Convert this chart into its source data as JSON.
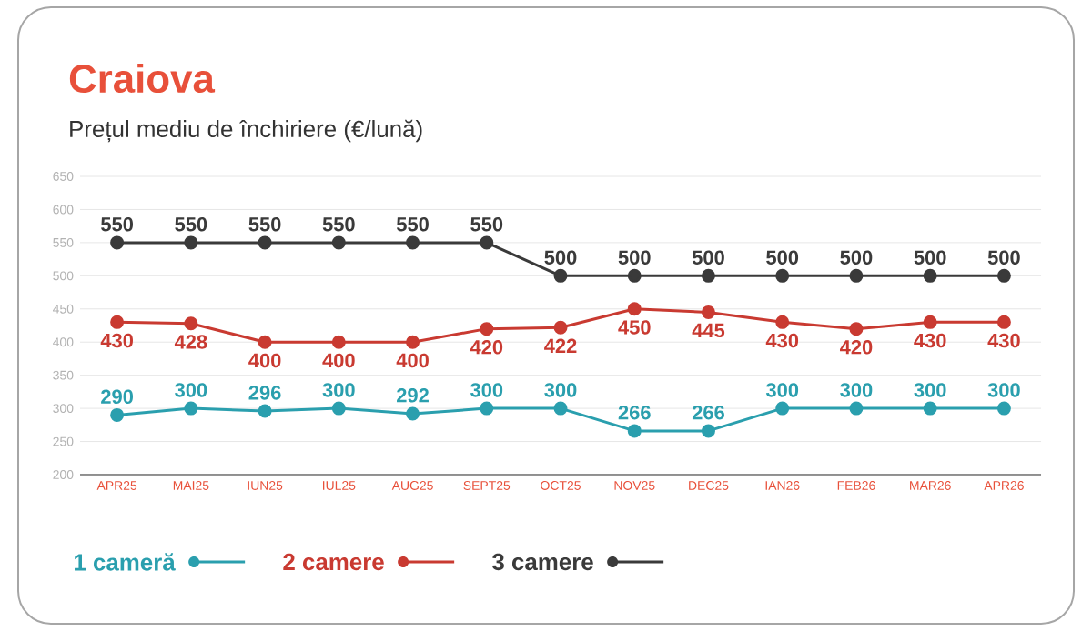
{
  "chart_data": {
    "type": "line",
    "title": "Craiova",
    "subtitle": "Prețul mediu de închiriere (€/lună)",
    "categories": [
      "APR25",
      "MAI25",
      "IUN25",
      "IUL25",
      "AUG25",
      "SEPT25",
      "OCT25",
      "NOV25",
      "DEC25",
      "IAN26",
      "FEB26",
      "MAR26",
      "APR26"
    ],
    "series": [
      {
        "name": "1 cameră",
        "color": "#2a9fae",
        "values": [
          290,
          300,
          296,
          300,
          292,
          300,
          300,
          266,
          266,
          300,
          300,
          300,
          300
        ]
      },
      {
        "name": "2 camere",
        "color": "#c93a31",
        "values": [
          430,
          428,
          400,
          400,
          400,
          420,
          422,
          450,
          445,
          430,
          420,
          430,
          430
        ]
      },
      {
        "name": "3 camere",
        "color": "#3a3a3a",
        "values": [
          550,
          550,
          550,
          550,
          550,
          550,
          500,
          500,
          500,
          500,
          500,
          500,
          500
        ]
      }
    ],
    "ylim": [
      200,
      650
    ],
    "yticks": [
      200,
      250,
      300,
      350,
      400,
      450,
      500,
      550,
      600,
      650
    ],
    "grid": "y",
    "data_labels": true,
    "legend": "bottom",
    "marker": "circle",
    "line_style": "solid"
  }
}
